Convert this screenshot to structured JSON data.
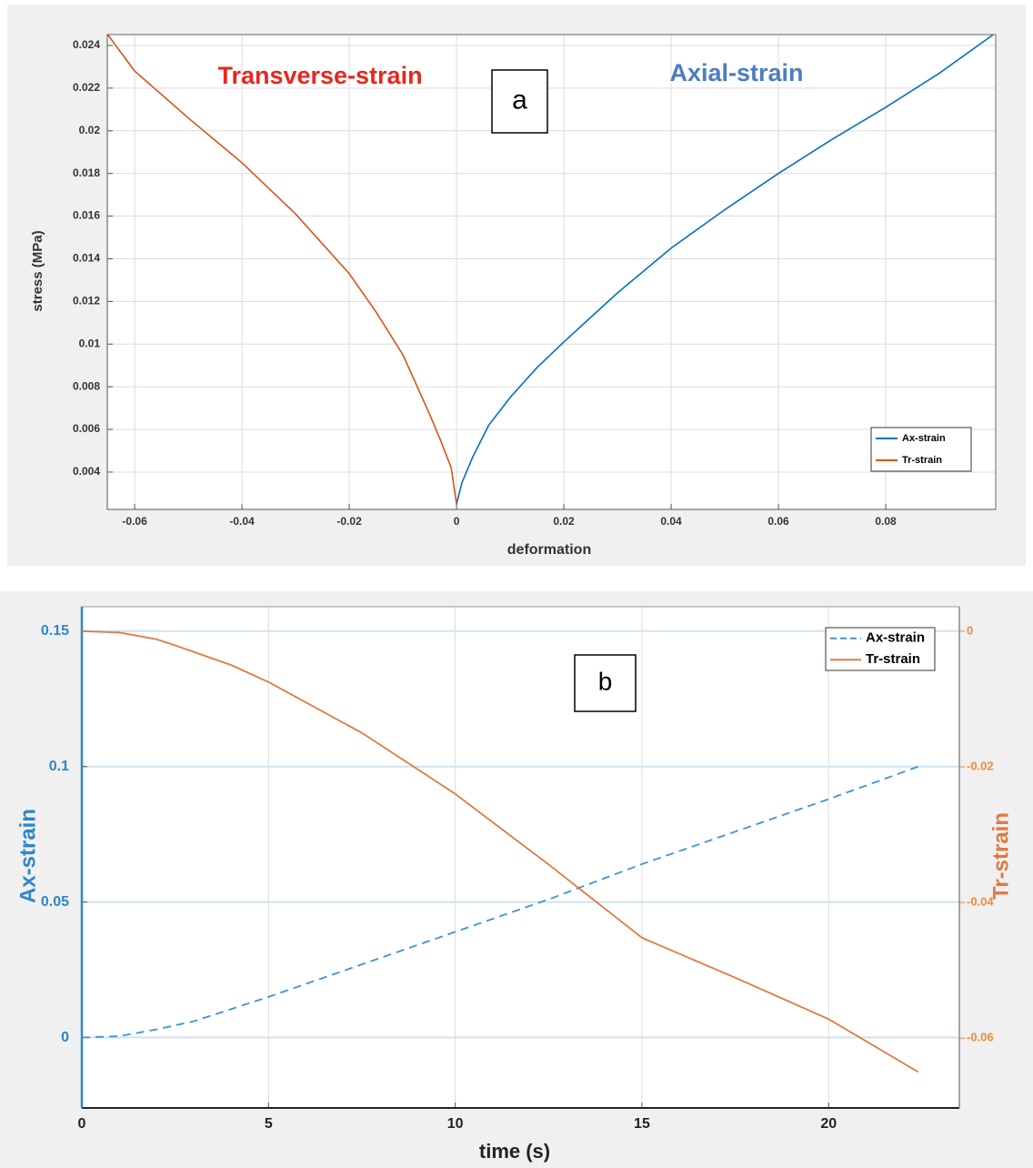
{
  "chart_data": [
    {
      "type": "line",
      "x_label": "deformation",
      "y_label": "stress (MPa)",
      "annotations": [
        {
          "text": "Transverse-strain",
          "color": "#e8271f"
        },
        {
          "text": "Axial-strain",
          "color": "#4a7ec0"
        }
      ],
      "panel_label": "a",
      "xlim": [
        -0.0651,
        0.1005
      ],
      "xticks": [
        -0.06,
        -0.04,
        -0.02,
        0,
        0.02,
        0.04,
        0.06,
        0.08
      ],
      "ylim": [
        0.00225,
        0.02451
      ],
      "yticks": [
        0.004,
        0.006,
        0.008,
        0.01,
        0.012,
        0.014,
        0.016,
        0.018,
        0.02,
        0.022,
        0.024
      ],
      "grid": true,
      "legend": "lower right",
      "series": [
        {
          "name": "Ax-strain",
          "color": "#0072bd",
          "style": "solid",
          "x": [
            0,
            0.001,
            0.003,
            0.006,
            0.01,
            0.015,
            0.02,
            0.03,
            0.04,
            0.05,
            0.06,
            0.07,
            0.08,
            0.09,
            0.1
          ],
          "values": [
            0.0025,
            0.0035,
            0.0047,
            0.0062,
            0.0075,
            0.0089,
            0.0101,
            0.0124,
            0.0145,
            0.0163,
            0.018,
            0.0196,
            0.0211,
            0.0227,
            0.0245
          ]
        },
        {
          "name": "Tr-strain",
          "color": "#d95319",
          "style": "solid",
          "x": [
            0,
            -0.001,
            -0.003,
            -0.005,
            -0.01,
            -0.015,
            -0.02,
            -0.03,
            -0.04,
            -0.05,
            -0.06,
            -0.065
          ],
          "values": [
            0.0025,
            0.0042,
            0.0055,
            0.0067,
            0.0095,
            0.0115,
            0.0133,
            0.0161,
            0.0185,
            0.0206,
            0.0228,
            0.0245
          ]
        }
      ]
    },
    {
      "type": "line",
      "x_label": "time (s)",
      "y_label": "Ax-strain",
      "y2_label": "Tr-strain",
      "panel_label": "b",
      "xlim": [
        0,
        23.5
      ],
      "xticks": [
        0,
        5,
        10,
        15,
        20
      ],
      "ylim": [
        -0.026,
        0.159
      ],
      "yticks": [
        0,
        0.05,
        0.1,
        0.15
      ],
      "y2lim": [
        -0.0703,
        0.0036
      ],
      "y2ticks": [
        0,
        -0.02,
        -0.04,
        -0.06
      ],
      "grid": true,
      "legend": "upper right",
      "series": [
        {
          "name": "Ax-strain",
          "color": "#3d93d6",
          "style": "dashed",
          "x": [
            0,
            1,
            2,
            3,
            5,
            7.5,
            10,
            12.5,
            15,
            17.5,
            20,
            22.4
          ],
          "values": [
            0,
            0.0005,
            0.003,
            0.006,
            0.015,
            0.027,
            0.039,
            0.051,
            0.064,
            0.076,
            0.088,
            0.1
          ]
        },
        {
          "name": "Tr-strain",
          "color": "#e07a40",
          "style": "solid",
          "axis": "y2",
          "x": [
            0,
            1,
            2,
            2.5,
            4,
            5,
            7.5,
            10,
            12.5,
            15,
            17.5,
            20,
            22.4
          ],
          "values": [
            0,
            -0.0002,
            -0.0012,
            -0.0021,
            -0.005,
            -0.0075,
            -0.015,
            -0.024,
            -0.0344,
            -0.0452,
            -0.0511,
            -0.0572,
            -0.065
          ]
        }
      ]
    }
  ]
}
